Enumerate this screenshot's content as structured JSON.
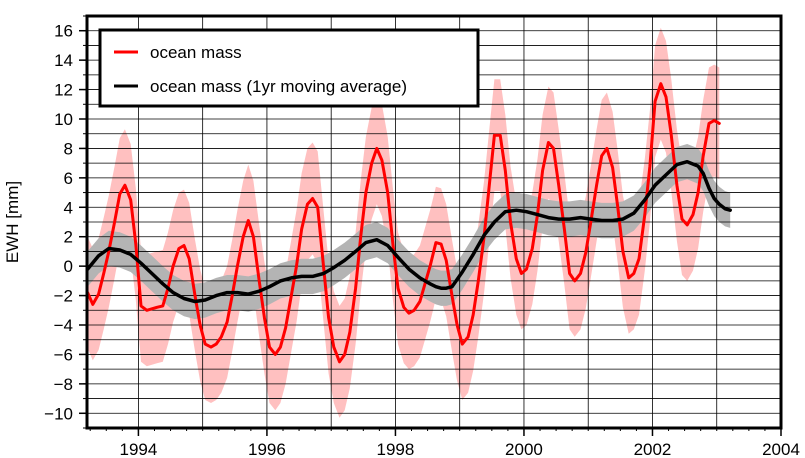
{
  "chart_data": {
    "type": "line",
    "title": "",
    "xlabel": "",
    "ylabel": "EWH [mm]",
    "xlim": [
      1993.2,
      2004.0
    ],
    "ylim": [
      -11,
      17
    ],
    "x_ticks": [
      1994,
      1996,
      1998,
      2000,
      2002,
      2004
    ],
    "x_tick_labels": [
      "1994",
      "1996",
      "1998",
      "2000",
      "2002",
      "2004"
    ],
    "y_ticks": [
      -10,
      -8,
      -6,
      -4,
      -2,
      0,
      2,
      4,
      6,
      8,
      10,
      12,
      14,
      16
    ],
    "y_tick_labels": [
      "−10",
      "−8",
      "−6",
      "−4",
      "−2",
      "0",
      "2",
      "4",
      "6",
      "8",
      "10",
      "12",
      "14",
      "16"
    ],
    "grid": true,
    "legend_position": "top-left",
    "colors": {
      "ocean_mass": "#ff0000",
      "ocean_mass_band": "#ffc0c0",
      "moving_average": "#000000",
      "moving_average_band": "#b4b4b4"
    },
    "series": [
      {
        "name": "ocean mass",
        "uncertainty": 3.8,
        "points": [
          [
            1993.21,
            -1.8
          ],
          [
            1993.29,
            -2.6
          ],
          [
            1993.38,
            -1.9
          ],
          [
            1993.46,
            -0.5
          ],
          [
            1993.54,
            1.0
          ],
          [
            1993.63,
            3.0
          ],
          [
            1993.71,
            4.9
          ],
          [
            1993.79,
            5.5
          ],
          [
            1993.88,
            4.5
          ],
          [
            1993.96,
            1.5
          ],
          [
            1994.04,
            -2.7
          ],
          [
            1994.13,
            -3.0
          ],
          [
            1994.21,
            -2.9
          ],
          [
            1994.29,
            -2.8
          ],
          [
            1994.38,
            -2.7
          ],
          [
            1994.46,
            -1.5
          ],
          [
            1994.54,
            0.0
          ],
          [
            1994.63,
            1.2
          ],
          [
            1994.71,
            1.4
          ],
          [
            1994.79,
            0.5
          ],
          [
            1994.88,
            -2.0
          ],
          [
            1994.96,
            -4.0
          ],
          [
            1995.04,
            -5.3
          ],
          [
            1995.13,
            -5.5
          ],
          [
            1995.21,
            -5.3
          ],
          [
            1995.29,
            -4.8
          ],
          [
            1995.38,
            -3.8
          ],
          [
            1995.46,
            -2.0
          ],
          [
            1995.54,
            0.0
          ],
          [
            1995.63,
            2.0
          ],
          [
            1995.71,
            3.1
          ],
          [
            1995.79,
            2.0
          ],
          [
            1995.88,
            -1.0
          ],
          [
            1995.96,
            -3.5
          ],
          [
            1996.04,
            -5.5
          ],
          [
            1996.13,
            -6.0
          ],
          [
            1996.21,
            -5.5
          ],
          [
            1996.29,
            -4.2
          ],
          [
            1996.38,
            -2.0
          ],
          [
            1996.46,
            0.0
          ],
          [
            1996.54,
            2.5
          ],
          [
            1996.63,
            4.2
          ],
          [
            1996.71,
            4.6
          ],
          [
            1996.79,
            4.0
          ],
          [
            1996.88,
            0.0
          ],
          [
            1996.96,
            -3.5
          ],
          [
            1997.04,
            -5.5
          ],
          [
            1997.13,
            -6.5
          ],
          [
            1997.21,
            -6.0
          ],
          [
            1997.29,
            -4.5
          ],
          [
            1997.38,
            -1.5
          ],
          [
            1997.46,
            2.0
          ],
          [
            1997.54,
            5.0
          ],
          [
            1997.63,
            7.0
          ],
          [
            1997.71,
            8.0
          ],
          [
            1997.79,
            7.2
          ],
          [
            1997.88,
            5.0
          ],
          [
            1997.96,
            1.5
          ],
          [
            1998.04,
            -1.5
          ],
          [
            1998.13,
            -2.8
          ],
          [
            1998.21,
            -3.2
          ],
          [
            1998.29,
            -3.0
          ],
          [
            1998.38,
            -2.4
          ],
          [
            1998.46,
            -1.2
          ],
          [
            1998.54,
            0.0
          ],
          [
            1998.63,
            1.6
          ],
          [
            1998.71,
            1.5
          ],
          [
            1998.79,
            0.4
          ],
          [
            1998.88,
            -2.0
          ],
          [
            1998.96,
            -4.0
          ],
          [
            1999.04,
            -5.3
          ],
          [
            1999.13,
            -4.8
          ],
          [
            1999.21,
            -3.3
          ],
          [
            1999.29,
            -1.0
          ],
          [
            1999.38,
            2.0
          ],
          [
            1999.46,
            5.5
          ],
          [
            1999.54,
            8.9
          ],
          [
            1999.63,
            8.9
          ],
          [
            1999.71,
            6.5
          ],
          [
            1999.79,
            3.0
          ],
          [
            1999.88,
            0.5
          ],
          [
            1999.96,
            -0.5
          ],
          [
            2000.04,
            -0.2
          ],
          [
            2000.13,
            1.2
          ],
          [
            2000.21,
            3.5
          ],
          [
            2000.29,
            6.5
          ],
          [
            2000.38,
            8.4
          ],
          [
            2000.46,
            8.0
          ],
          [
            2000.54,
            5.5
          ],
          [
            2000.63,
            2.5
          ],
          [
            2000.71,
            -0.5
          ],
          [
            2000.79,
            -1.0
          ],
          [
            2000.88,
            -0.5
          ],
          [
            2000.96,
            0.9
          ],
          [
            2001.04,
            3.0
          ],
          [
            2001.13,
            5.5
          ],
          [
            2001.21,
            7.5
          ],
          [
            2001.29,
            8.0
          ],
          [
            2001.38,
            6.7
          ],
          [
            2001.46,
            4.0
          ],
          [
            2001.54,
            1.0
          ],
          [
            2001.63,
            -0.8
          ],
          [
            2001.71,
            -0.5
          ],
          [
            2001.79,
            0.5
          ],
          [
            2001.88,
            3.5
          ],
          [
            2001.96,
            6.8
          ],
          [
            2002.04,
            11.2
          ],
          [
            2002.13,
            12.4
          ],
          [
            2002.21,
            11.5
          ],
          [
            2002.29,
            9.0
          ],
          [
            2002.38,
            5.5
          ],
          [
            2002.46,
            3.2
          ],
          [
            2002.54,
            2.8
          ],
          [
            2002.63,
            3.5
          ],
          [
            2002.71,
            5.0
          ],
          [
            2002.79,
            7.5
          ],
          [
            2002.88,
            9.7
          ],
          [
            2002.96,
            9.9
          ],
          [
            2003.04,
            9.7
          ]
        ]
      },
      {
        "name": "ocean mass (1yr moving average)",
        "uncertainty": 1.2,
        "points": [
          [
            1993.21,
            -0.2
          ],
          [
            1993.38,
            0.7
          ],
          [
            1993.54,
            1.2
          ],
          [
            1993.71,
            1.1
          ],
          [
            1993.88,
            0.8
          ],
          [
            1994.04,
            0.2
          ],
          [
            1994.21,
            -0.5
          ],
          [
            1994.38,
            -1.2
          ],
          [
            1994.54,
            -1.8
          ],
          [
            1994.71,
            -2.2
          ],
          [
            1994.88,
            -2.4
          ],
          [
            1995.04,
            -2.3
          ],
          [
            1995.21,
            -2.0
          ],
          [
            1995.38,
            -1.8
          ],
          [
            1995.54,
            -1.8
          ],
          [
            1995.71,
            -1.9
          ],
          [
            1995.88,
            -1.7
          ],
          [
            1996.04,
            -1.4
          ],
          [
            1996.21,
            -1.0
          ],
          [
            1996.38,
            -0.8
          ],
          [
            1996.54,
            -0.7
          ],
          [
            1996.71,
            -0.7
          ],
          [
            1996.88,
            -0.5
          ],
          [
            1997.04,
            -0.1
          ],
          [
            1997.21,
            0.4
          ],
          [
            1997.38,
            1.0
          ],
          [
            1997.54,
            1.6
          ],
          [
            1997.71,
            1.8
          ],
          [
            1997.88,
            1.4
          ],
          [
            1998.04,
            0.6
          ],
          [
            1998.21,
            -0.2
          ],
          [
            1998.38,
            -0.8
          ],
          [
            1998.54,
            -1.2
          ],
          [
            1998.63,
            -1.4
          ],
          [
            1998.71,
            -1.5
          ],
          [
            1998.79,
            -1.5
          ],
          [
            1998.88,
            -1.4
          ],
          [
            1999.04,
            -0.4
          ],
          [
            1999.21,
            0.8
          ],
          [
            1999.38,
            2.1
          ],
          [
            1999.54,
            3.0
          ],
          [
            1999.71,
            3.7
          ],
          [
            1999.88,
            3.8
          ],
          [
            2000.04,
            3.7
          ],
          [
            2000.21,
            3.5
          ],
          [
            2000.38,
            3.3
          ],
          [
            2000.54,
            3.2
          ],
          [
            2000.71,
            3.2
          ],
          [
            2000.88,
            3.3
          ],
          [
            2001.04,
            3.2
          ],
          [
            2001.21,
            3.1
          ],
          [
            2001.38,
            3.1
          ],
          [
            2001.54,
            3.2
          ],
          [
            2001.71,
            3.6
          ],
          [
            2001.88,
            4.5
          ],
          [
            2002.04,
            5.5
          ],
          [
            2002.21,
            6.2
          ],
          [
            2002.38,
            6.9
          ],
          [
            2002.54,
            7.1
          ],
          [
            2002.71,
            6.8
          ],
          [
            2002.79,
            6.3
          ],
          [
            2002.88,
            5.3
          ],
          [
            2002.96,
            4.6
          ],
          [
            2003.04,
            4.2
          ],
          [
            2003.13,
            3.9
          ],
          [
            2003.21,
            3.8
          ]
        ]
      }
    ]
  }
}
